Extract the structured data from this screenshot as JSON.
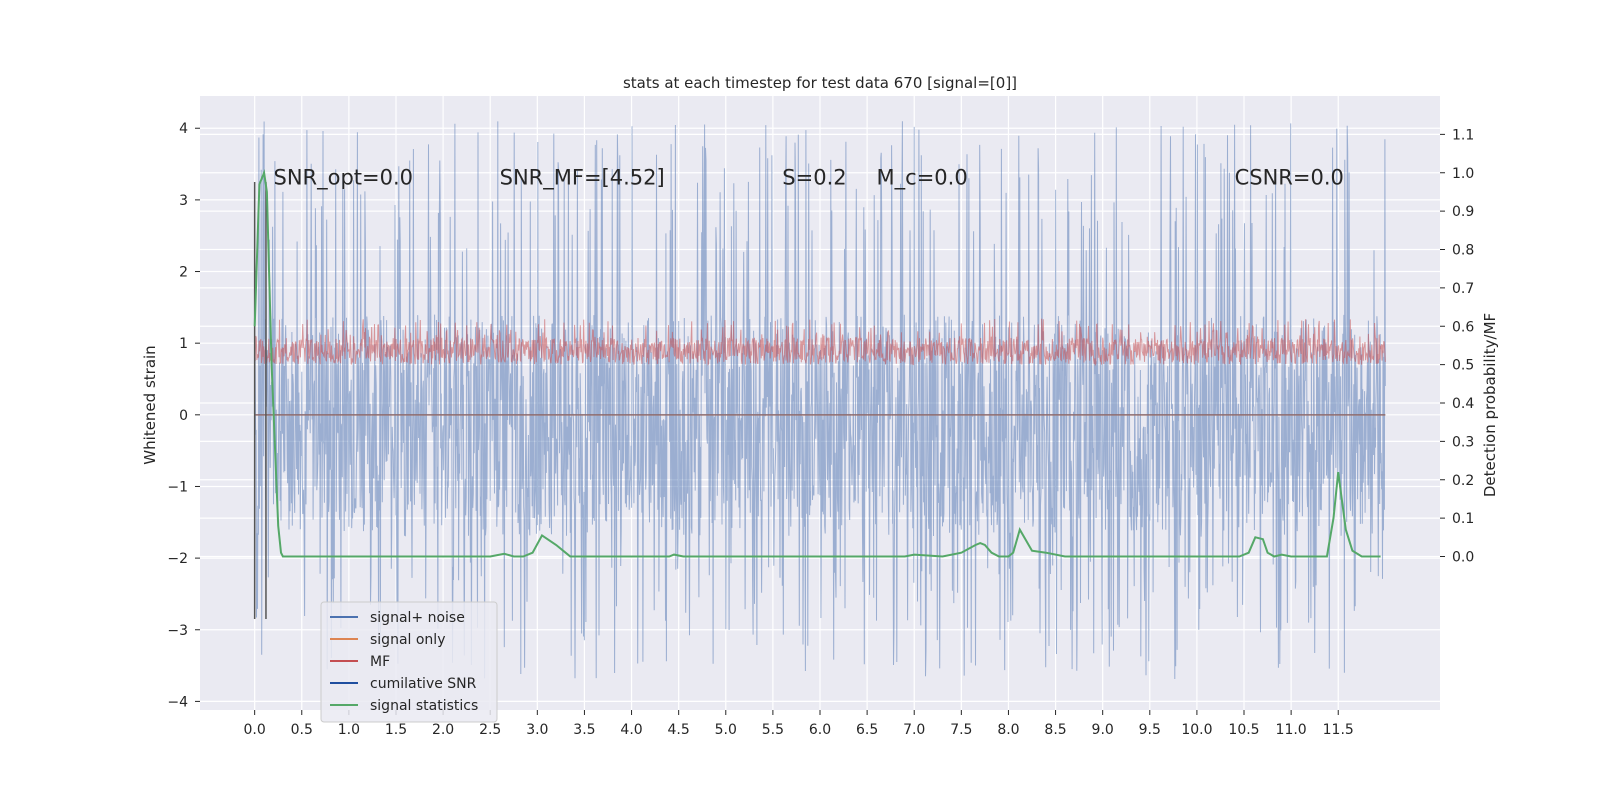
{
  "chart_data": {
    "type": "line",
    "title": "stats at each timestep for test data 670 [signal=[0]]",
    "ylabel_left": "Whitened strain",
    "ylabel_right": "Detection probability/MF",
    "xlim": [
      -0.58,
      12.58
    ],
    "ylim_left": [
      -4.12,
      4.45
    ],
    "ylim_right": [
      -0.4,
      1.2
    ],
    "grid": true,
    "x_ticks": [
      "0.0",
      "0.5",
      "1.0",
      "1.5",
      "2.0",
      "2.5",
      "3.0",
      "3.5",
      "4.0",
      "4.5",
      "5.0",
      "5.5",
      "6.0",
      "6.5",
      "7.0",
      "7.5",
      "8.0",
      "8.5",
      "9.0",
      "9.5",
      "10.0",
      "10.5",
      "11.0",
      "11.5"
    ],
    "y_ticks_left": [
      "4",
      "3",
      "2",
      "1",
      "0",
      "−1",
      "−2",
      "−3",
      "−4"
    ],
    "y_ticks_right": [
      "1.1",
      "1.0",
      "0.9",
      "0.8",
      "0.7",
      "0.6",
      "0.5",
      "0.4",
      "0.3",
      "0.2",
      "0.1",
      "0.0"
    ],
    "annotations": [
      {
        "text": "SNR_opt=0.0",
        "x": 0.2,
        "y": 3.3
      },
      {
        "text": "SNR_MF=[4.52]",
        "x": 2.6,
        "y": 3.3
      },
      {
        "text": "S=0.2",
        "x": 5.6,
        "y": 3.3
      },
      {
        "text": "M_c=0.0",
        "x": 6.6,
        "y": 3.3
      },
      {
        "text": "CSNR=0.0",
        "x": 10.4,
        "y": 3.3
      }
    ],
    "legend": {
      "placement": "lower-left",
      "entries": [
        {
          "label": "signal+ noise",
          "color": "#4c72b0"
        },
        {
          "label": "signal only",
          "color": "#dd8452"
        },
        {
          "label": "MF",
          "color": "#c44e52"
        },
        {
          "label": "cumilative SNR",
          "color": "#1f4e9f"
        },
        {
          "label": "signal statistics",
          "color": "#55a868"
        }
      ]
    },
    "series": [
      {
        "name": "signal+ noise",
        "axis": "left",
        "color": "#4c72b0",
        "x_range": [
          0,
          12.0
        ],
        "band": [
          -1.7,
          1.4
        ],
        "peaks_range": [
          -3.7,
          4.1
        ]
      },
      {
        "name": "signal only",
        "axis": "left",
        "color": "#dd8452",
        "x_range": [
          0,
          12.0
        ],
        "values": [
          0.0
        ]
      },
      {
        "name": "MF",
        "axis": "right",
        "color": "#c44e52",
        "x_range": [
          0,
          12.0
        ],
        "band": [
          0.5,
          0.57
        ],
        "peaks_range": [
          0.48,
          0.62
        ]
      },
      {
        "name": "cumilative SNR",
        "axis": "left",
        "color": "#1f4e9f",
        "x_range": [
          0,
          12.0
        ],
        "values": [
          0.0
        ]
      },
      {
        "name": "signal statistics",
        "axis": "right",
        "color": "#55a868",
        "x": [
          0.0,
          0.05,
          0.1,
          0.13,
          0.18,
          0.25,
          0.28,
          0.3,
          1.0,
          2.0,
          2.5,
          2.65,
          2.75,
          2.85,
          2.95,
          3.05,
          3.2,
          3.3,
          3.35,
          3.5,
          4.0,
          4.4,
          4.45,
          4.55,
          5.0,
          6.0,
          6.9,
          7.0,
          7.3,
          7.5,
          7.65,
          7.7,
          7.75,
          7.82,
          7.9,
          8.0,
          8.05,
          8.12,
          8.25,
          8.4,
          8.6,
          9.0,
          10.0,
          10.45,
          10.55,
          10.62,
          10.7,
          10.75,
          10.82,
          10.9,
          11.0,
          11.1,
          11.2,
          11.38,
          11.45,
          11.5,
          11.58,
          11.65,
          11.75,
          11.95
        ],
        "values": [
          0.6,
          0.97,
          1.0,
          0.95,
          0.5,
          0.08,
          0.01,
          0.0,
          0.0,
          0.0,
          0.0,
          0.007,
          0.0,
          0.0,
          0.01,
          0.055,
          0.03,
          0.01,
          0.0,
          0.0,
          0.0,
          0.0,
          0.005,
          0.0,
          0.0,
          0.0,
          0.0,
          0.005,
          0.0,
          0.01,
          0.03,
          0.035,
          0.03,
          0.01,
          0.0,
          0.0,
          0.01,
          0.07,
          0.015,
          0.01,
          0.0,
          0.0,
          0.0,
          0.0,
          0.01,
          0.05,
          0.045,
          0.01,
          0.0,
          0.005,
          0.0,
          0.0,
          0.0,
          0.0,
          0.1,
          0.22,
          0.07,
          0.015,
          0.0,
          0.0
        ]
      }
    ],
    "vertical_markers": [
      0.0,
      0.12
    ]
  }
}
